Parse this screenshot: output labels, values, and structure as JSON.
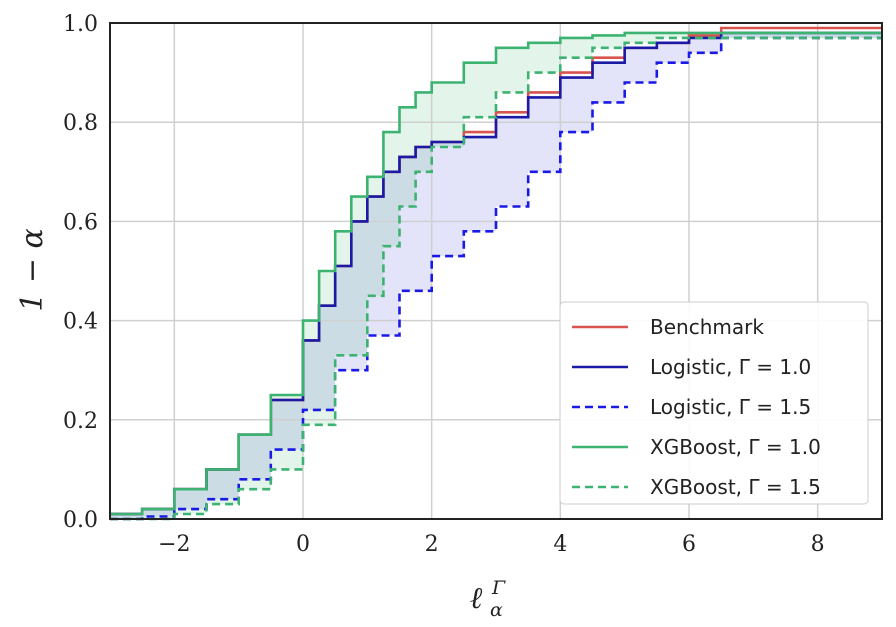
{
  "chart_data": {
    "type": "line",
    "xlabel": "ℓ",
    "xlabel_sup": "Γ",
    "xlabel_sub": "α",
    "ylabel": "1 − α",
    "xlim": [
      -3,
      9
    ],
    "ylim": [
      0,
      1
    ],
    "xticks": [
      -2,
      0,
      2,
      4,
      6,
      8
    ],
    "xtick_labels": [
      "−2",
      "0",
      "2",
      "4",
      "6",
      "8"
    ],
    "yticks": [
      0.0,
      0.2,
      0.4,
      0.6,
      0.8,
      1.0
    ],
    "ytick_labels": [
      "0.0",
      "0.2",
      "0.4",
      "0.6",
      "0.8",
      "1.0"
    ],
    "grid": true,
    "legend_position": "lower-right",
    "series": [
      {
        "name": "Benchmark",
        "color": "#d9534f",
        "style": "solid",
        "x": [
          -3,
          -2.5,
          -2,
          -1.5,
          -1,
          -0.5,
          0,
          0.25,
          0.5,
          0.75,
          1,
          1.25,
          1.5,
          1.75,
          2,
          2.5,
          3,
          3.5,
          4,
          4.5,
          5,
          5.5,
          6,
          6.5,
          7,
          8,
          9
        ],
        "y": [
          0.01,
          0.02,
          0.06,
          0.1,
          0.17,
          0.24,
          0.36,
          0.43,
          0.51,
          0.6,
          0.65,
          0.7,
          0.73,
          0.75,
          0.76,
          0.78,
          0.82,
          0.86,
          0.9,
          0.93,
          0.95,
          0.96,
          0.975,
          0.99,
          0.99,
          0.99,
          0.99
        ]
      },
      {
        "name": "Logistic, Γ = 1.0",
        "color": "#1a1aa6",
        "style": "solid",
        "x": [
          -3,
          -2.5,
          -2,
          -1.5,
          -1,
          -0.5,
          0,
          0.25,
          0.5,
          0.75,
          1,
          1.25,
          1.5,
          1.75,
          2,
          2.5,
          3,
          3.5,
          4,
          4.5,
          5,
          5.5,
          6,
          6.5,
          7,
          8,
          9
        ],
        "y": [
          0.01,
          0.02,
          0.06,
          0.1,
          0.17,
          0.24,
          0.36,
          0.43,
          0.51,
          0.6,
          0.65,
          0.7,
          0.73,
          0.75,
          0.76,
          0.77,
          0.81,
          0.85,
          0.89,
          0.92,
          0.95,
          0.96,
          0.97,
          0.98,
          0.98,
          0.98,
          0.98
        ]
      },
      {
        "name": "Logistic, Γ = 1.5",
        "color": "#1a1ae6",
        "style": "dashed",
        "x": [
          -3,
          -2.5,
          -2,
          -1.5,
          -1,
          -0.5,
          0,
          0.5,
          1,
          1.5,
          2,
          2.5,
          3,
          3.5,
          4,
          4.5,
          5,
          5.5,
          6,
          6.5,
          7,
          8,
          9
        ],
        "y": [
          0,
          0.005,
          0.02,
          0.04,
          0.08,
          0.14,
          0.22,
          0.3,
          0.37,
          0.46,
          0.53,
          0.58,
          0.63,
          0.7,
          0.78,
          0.84,
          0.88,
          0.92,
          0.94,
          0.97,
          0.97,
          0.97,
          0.97
        ]
      },
      {
        "name": "XGBoost, Γ = 1.0",
        "color": "#3cb371",
        "style": "solid",
        "x": [
          -3,
          -2.5,
          -2,
          -1.5,
          -1,
          -0.5,
          0,
          0.25,
          0.5,
          0.75,
          1,
          1.25,
          1.5,
          1.75,
          2,
          2.5,
          3,
          3.5,
          4,
          4.5,
          5,
          5.5,
          6,
          6.5,
          7,
          8,
          9
        ],
        "y": [
          0.01,
          0.02,
          0.06,
          0.1,
          0.17,
          0.25,
          0.4,
          0.5,
          0.58,
          0.65,
          0.69,
          0.78,
          0.83,
          0.86,
          0.88,
          0.92,
          0.95,
          0.96,
          0.97,
          0.975,
          0.98,
          0.98,
          0.98,
          0.98,
          0.98,
          0.98,
          0.98
        ]
      },
      {
        "name": "XGBoost, Γ = 1.5",
        "color": "#3cb371",
        "style": "dashed",
        "x": [
          -3,
          -2.5,
          -2,
          -1.5,
          -1,
          -0.5,
          0,
          0.5,
          1,
          1.25,
          1.5,
          1.75,
          2,
          2.5,
          3,
          3.5,
          4,
          4.5,
          5,
          5.5,
          6,
          6.5,
          7,
          8,
          9
        ],
        "y": [
          0,
          0,
          0.01,
          0.03,
          0.06,
          0.1,
          0.19,
          0.33,
          0.45,
          0.55,
          0.63,
          0.7,
          0.75,
          0.81,
          0.86,
          0.9,
          0.93,
          0.95,
          0.96,
          0.97,
          0.97,
          0.97,
          0.97,
          0.97,
          0.97
        ]
      }
    ],
    "bands": [
      {
        "between": [
          "Logistic, Γ = 1.0",
          "Logistic, Γ = 1.5"
        ],
        "color": "#6666dd",
        "opacity": 0.18
      },
      {
        "between": [
          "XGBoost, Γ = 1.0",
          "XGBoost, Γ = 1.5"
        ],
        "color": "#3cb371",
        "opacity": 0.14
      }
    ]
  }
}
